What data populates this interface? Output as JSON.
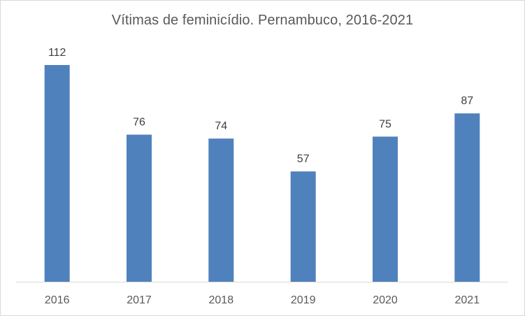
{
  "chart_data": {
    "type": "bar",
    "title": "Vítimas de feminicídio. Pernambuco, 2016-2021",
    "categories": [
      "2016",
      "2017",
      "2018",
      "2019",
      "2020",
      "2021"
    ],
    "values": [
      112,
      76,
      74,
      57,
      75,
      87
    ],
    "data_labels": [
      "112",
      "76",
      "74",
      "57",
      "75",
      "87"
    ],
    "ylim": [
      0,
      112
    ],
    "grid": false,
    "legend": "none",
    "colors": {
      "bar": "#4f81bd",
      "axis": "#d9d9d9",
      "text": "#595959"
    }
  }
}
